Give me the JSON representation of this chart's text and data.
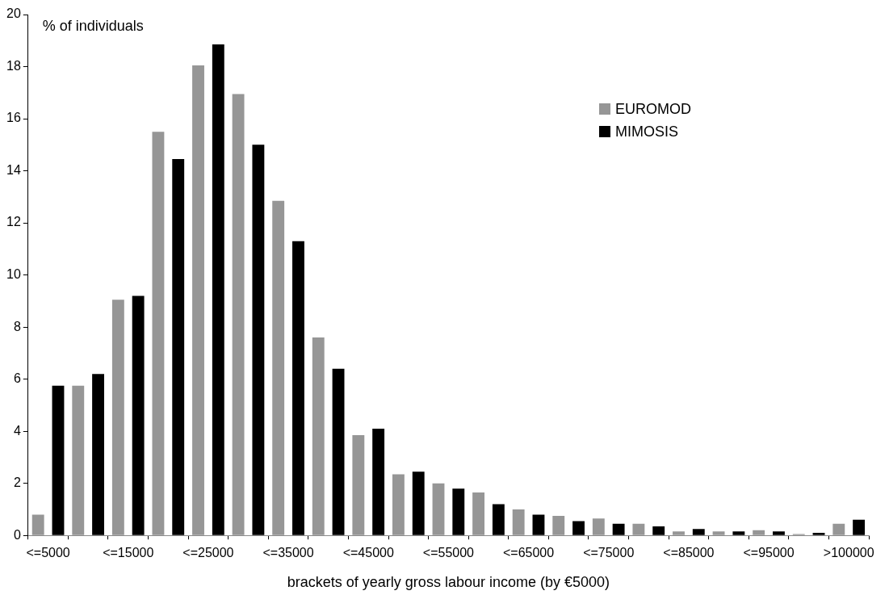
{
  "chart_data": {
    "type": "bar",
    "xlabel": "brackets of yearly gross labour income (by €5000)",
    "ylabel": "% of individuals",
    "categories": [
      "<=5000",
      null,
      "<=15000",
      null,
      "<=25000",
      null,
      "<=35000",
      null,
      "<=45000",
      null,
      "<=55000",
      null,
      "<=65000",
      null,
      "<=75000",
      null,
      "<=85000",
      null,
      "<=95000",
      null,
      ">100000"
    ],
    "series": [
      {
        "name": "EUROMOD",
        "color": "#969696",
        "values": [
          0.8,
          5.75,
          9.05,
          15.5,
          18.05,
          16.95,
          12.85,
          7.6,
          3.85,
          2.35,
          2.0,
          1.65,
          1.0,
          0.75,
          0.65,
          0.45,
          0.15,
          0.15,
          0.2,
          0.05,
          0.45
        ]
      },
      {
        "name": "MIMOSIS",
        "color": "#000000",
        "values": [
          5.75,
          6.2,
          9.2,
          14.45,
          18.85,
          15.0,
          11.3,
          6.4,
          4.1,
          2.45,
          1.8,
          1.2,
          0.8,
          0.55,
          0.45,
          0.35,
          0.25,
          0.15,
          0.15,
          0.1,
          0.6
        ]
      }
    ],
    "ylim": [
      0,
      20
    ],
    "yticks": [
      0,
      2,
      4,
      6,
      8,
      10,
      12,
      14,
      16,
      18,
      20
    ],
    "grid": false,
    "legend": "top right"
  }
}
